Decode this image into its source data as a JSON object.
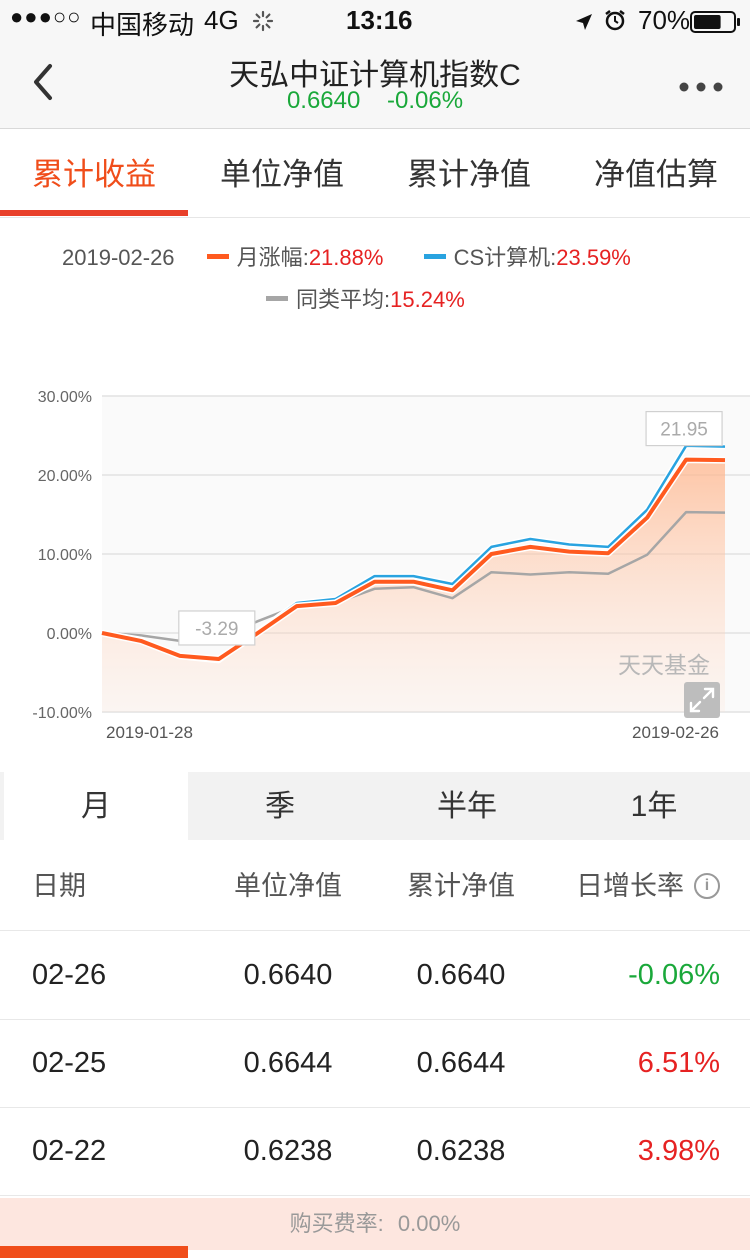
{
  "status_bar": {
    "signal": "●●●○○",
    "carrier": "中国移动",
    "network": "4G",
    "time": "13:16",
    "battery_pct": "70%",
    "battery_level": 0.7
  },
  "header": {
    "title": "天弘中证计算机指数C",
    "nav_value": "0.6640",
    "change": "-0.06%"
  },
  "tabs": [
    {
      "label": "累计收益",
      "active": true
    },
    {
      "label": "单位净值",
      "active": false
    },
    {
      "label": "累计净值",
      "active": false
    },
    {
      "label": "净值估算",
      "active": false
    }
  ],
  "legend": {
    "date": "2019-02-26",
    "items": [
      {
        "name": "月涨幅",
        "value": "21.88%",
        "color": "#ff5a1f"
      },
      {
        "name": "CS计算机",
        "value": "23.59%",
        "color": "#29a3e0"
      },
      {
        "name": "同类平均",
        "value": "15.24%",
        "color": "#a6a6a6"
      }
    ]
  },
  "chart_data": {
    "type": "area",
    "ylim": [
      -10,
      30
    ],
    "yticks": [
      "30.00%",
      "20.00%",
      "10.00%",
      "0.00%",
      "-10.00%"
    ],
    "ytick_values": [
      30,
      20,
      10,
      0,
      -10
    ],
    "x_start_label": "2019-01-28",
    "x_end_label": "2019-02-26",
    "x": [
      "01-28",
      "01-29",
      "01-30",
      "01-31",
      "02-01",
      "02-11",
      "02-12",
      "02-13",
      "02-14",
      "02-15",
      "02-18",
      "02-19",
      "02-20",
      "02-21",
      "02-22",
      "02-25",
      "02-26"
    ],
    "series": [
      {
        "name": "CS计算机",
        "color": "#29a3e0",
        "values": [
          0.0,
          -0.8,
          -3.0,
          -3.5,
          0.2,
          3.8,
          4.3,
          7.2,
          7.2,
          6.2,
          10.9,
          11.9,
          11.2,
          10.9,
          15.6,
          23.7,
          23.59
        ]
      },
      {
        "name": "同类平均",
        "color": "#a6a6a6",
        "values": [
          0.0,
          -0.3,
          -1.0,
          -0.7,
          1.5,
          3.4,
          3.8,
          5.6,
          5.8,
          4.4,
          7.7,
          7.4,
          7.7,
          7.5,
          9.9,
          15.3,
          15.24
        ]
      },
      {
        "name": "月涨幅",
        "color": "#ff5a1f",
        "values": [
          0.0,
          -1.0,
          -2.9,
          -3.29,
          0.0,
          3.4,
          3.8,
          6.5,
          6.5,
          5.4,
          10.0,
          10.9,
          10.3,
          10.1,
          14.6,
          21.95,
          21.88
        ]
      }
    ],
    "annotations": [
      {
        "text": "-3.29",
        "series": "月涨幅",
        "index": 3
      },
      {
        "text": "21.95",
        "series": "月涨幅",
        "index": 15
      }
    ],
    "watermark": "天天基金",
    "grid": true
  },
  "period_tabs": [
    {
      "label": "月",
      "active": true
    },
    {
      "label": "季",
      "active": false
    },
    {
      "label": "半年",
      "active": false
    },
    {
      "label": "1年",
      "active": false
    }
  ],
  "table": {
    "headers": [
      "日期",
      "单位净值",
      "累计净值",
      "日增长率"
    ],
    "rows": [
      {
        "date": "02-26",
        "unit_nav": "0.6640",
        "acc_nav": "0.6640",
        "growth": "-0.06%"
      },
      {
        "date": "02-25",
        "unit_nav": "0.6644",
        "acc_nav": "0.6644",
        "growth": "6.51%"
      },
      {
        "date": "02-22",
        "unit_nav": "0.6238",
        "acc_nav": "0.6238",
        "growth": "3.98%"
      }
    ]
  },
  "fee": {
    "label": "购买费率:",
    "value": "0.00%"
  },
  "icons": [
    "back-arrow-icon",
    "more-dots-icon",
    "location-arrow-icon",
    "alarm-icon",
    "battery-icon",
    "loading-spinner-icon",
    "info-icon",
    "expand-icon"
  ]
}
